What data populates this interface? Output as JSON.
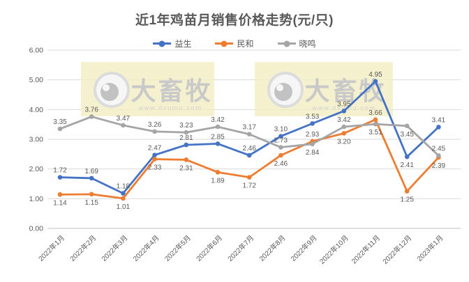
{
  "page": {
    "title": "近1年鸡苗月销售价格走势(元/只)"
  },
  "watermark": {
    "brand": "大畜牧",
    "url": "www.dxumu.com",
    "eye_icon": "eye-logo-icon",
    "box_color": "#F3EEC5",
    "text_color": "#C9C9C9"
  },
  "chart_data": {
    "type": "line",
    "title": "近1年鸡苗月销售价格走势(元/只)",
    "categories": [
      "2022年1月",
      "2022年2月",
      "2022年3月",
      "2022年4月",
      "2022年5月",
      "2022年6月",
      "2022年7月",
      "2022年8月",
      "2022年9月",
      "2022年10月",
      "2022年11月",
      "2022年12月",
      "2023年1月"
    ],
    "series": [
      {
        "name": "益生",
        "color": "#4472C4",
        "values": [
          1.72,
          1.69,
          1.18,
          2.47,
          2.81,
          2.85,
          2.46,
          3.1,
          3.53,
          3.95,
          4.95,
          2.41,
          3.41
        ],
        "label_positions": [
          "above",
          "above",
          "above",
          "above",
          "above",
          "above",
          "above",
          "above",
          "above",
          "above",
          "above",
          "below",
          "above"
        ]
      },
      {
        "name": "民和",
        "color": "#ED7D31",
        "values": [
          1.14,
          1.15,
          1.01,
          2.33,
          2.31,
          1.89,
          1.72,
          2.46,
          2.93,
          3.2,
          3.66,
          1.25,
          2.39
        ],
        "label_positions": [
          "below",
          "below",
          "below",
          "below",
          "below",
          "below",
          "below",
          "below",
          "above",
          "below",
          "above",
          "below",
          "below"
        ]
      },
      {
        "name": "晓鸣",
        "color": "#A5A5A5",
        "values": [
          3.35,
          3.76,
          3.47,
          3.26,
          3.23,
          3.42,
          3.17,
          2.73,
          2.84,
          3.42,
          3.51,
          3.45,
          2.45
        ],
        "label_positions": [
          "above",
          "above",
          "above",
          "above",
          "above",
          "above",
          "above",
          "above",
          "below",
          "above",
          "below",
          "below",
          "above"
        ]
      }
    ],
    "ylim": [
      0,
      6
    ],
    "yticks": [
      "0.00",
      "1.00",
      "2.00",
      "3.00",
      "4.00",
      "5.00",
      "6.00"
    ],
    "grid": true,
    "legend_position": "top",
    "label_color": "#595959",
    "axis_text_color": "#595959",
    "grid_color": "#D9D9D9",
    "axis_line_color": "#BFBFBF"
  }
}
